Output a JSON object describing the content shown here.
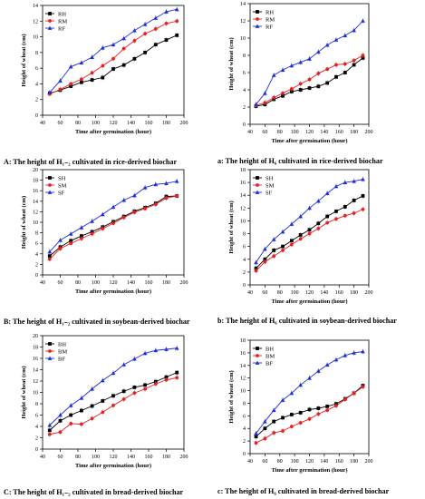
{
  "colors": {
    "H": "#000000",
    "M": "#e82020",
    "F": "#1f2fd8"
  },
  "panels": [
    {
      "id": "A",
      "caption": "A: The height of H₁₋₂ cultivated in rice-derived biochar",
      "chart_data": {
        "type": "line",
        "xlabel": "Time after germination (hour)",
        "ylabel": "Height of wheat (cm)",
        "xlim": [
          40,
          200
        ],
        "ylim": [
          0,
          14
        ],
        "xticks": [
          40,
          60,
          80,
          100,
          120,
          140,
          160,
          180,
          200
        ],
        "yticks": [
          0,
          2,
          4,
          6,
          8,
          10,
          12,
          14
        ],
        "legend_position": "top-left",
        "x": [
          48,
          60,
          72,
          84,
          96,
          108,
          120,
          132,
          144,
          156,
          168,
          180,
          192
        ],
        "series": [
          {
            "name": "RH",
            "marker": "square",
            "color": "#000000",
            "values": [
              2.8,
              3.2,
              3.7,
              4.2,
              4.5,
              4.8,
              5.9,
              6.4,
              7.2,
              8.0,
              9.0,
              9.6,
              10.2
            ]
          },
          {
            "name": "RM",
            "marker": "circle",
            "color": "#e82020",
            "values": [
              2.7,
              3.3,
              4.0,
              4.6,
              5.4,
              6.3,
              7.2,
              8.5,
              9.5,
              10.4,
              11.0,
              11.7,
              12.0
            ]
          },
          {
            "name": "RF",
            "marker": "triangle",
            "color": "#1f2fd8",
            "values": [
              2.9,
              4.4,
              6.2,
              6.7,
              7.4,
              8.6,
              9.0,
              9.8,
              10.8,
              11.6,
              12.4,
              13.2,
              13.5
            ]
          }
        ]
      }
    },
    {
      "id": "a",
      "caption": "a: The height of H₆ cultivated in rice-derived biochar",
      "chart_data": {
        "type": "line",
        "xlabel": "Time after germination (hour)",
        "ylabel": "Height of wheat (cm)",
        "xlim": [
          40,
          200
        ],
        "ylim": [
          0,
          14
        ],
        "xticks": [
          40,
          60,
          80,
          100,
          120,
          140,
          160,
          180,
          200
        ],
        "yticks": [
          0,
          2,
          4,
          6,
          8,
          10,
          12,
          14
        ],
        "legend_position": "top-left",
        "x": [
          48,
          60,
          72,
          84,
          96,
          108,
          120,
          132,
          144,
          156,
          168,
          180,
          192
        ],
        "series": [
          {
            "name": "RH",
            "marker": "square",
            "color": "#000000",
            "values": [
              2.1,
              2.3,
              2.9,
              3.3,
              3.8,
              4.0,
              4.2,
              4.4,
              4.8,
              5.5,
              6.0,
              6.9,
              7.7
            ]
          },
          {
            "name": "RM",
            "marker": "circle",
            "color": "#e82020",
            "values": [
              2.2,
              2.5,
              3.1,
              3.6,
              4.1,
              4.7,
              5.2,
              5.9,
              6.4,
              6.9,
              7.0,
              7.4,
              8.0
            ]
          },
          {
            "name": "RF",
            "marker": "triangle",
            "color": "#1f2fd8",
            "values": [
              2.3,
              3.6,
              5.7,
              6.3,
              6.8,
              7.2,
              7.6,
              8.4,
              9.2,
              9.8,
              10.3,
              10.9,
              12.0
            ]
          }
        ]
      }
    },
    {
      "id": "B",
      "caption": "B: The height of H₁₋₂ cultivated in soybean-derived biochar",
      "chart_data": {
        "type": "line",
        "xlabel": "Time after germination (hour)",
        "ylabel": "Height of wheat (cm)",
        "xlim": [
          40,
          200
        ],
        "ylim": [
          0,
          20
        ],
        "xticks": [
          40,
          60,
          80,
          100,
          120,
          140,
          160,
          180,
          200
        ],
        "yticks": [
          0,
          2,
          4,
          6,
          8,
          10,
          12,
          14,
          16,
          18,
          20
        ],
        "legend_position": "top-left",
        "x": [
          48,
          60,
          72,
          84,
          96,
          108,
          120,
          132,
          144,
          156,
          168,
          180,
          192
        ],
        "series": [
          {
            "name": "SH",
            "marker": "square",
            "color": "#000000",
            "values": [
              3.6,
              5.3,
              6.5,
              7.4,
              8.2,
              9.1,
              10.1,
              11.1,
              12.1,
              12.8,
              13.6,
              14.9,
              15.0
            ]
          },
          {
            "name": "SM",
            "marker": "circle",
            "color": "#e82020",
            "values": [
              3.0,
              5.0,
              6.0,
              6.9,
              7.8,
              8.8,
              9.8,
              10.9,
              11.9,
              12.6,
              13.4,
              14.6,
              15.0
            ]
          },
          {
            "name": "SF",
            "marker": "triangle",
            "color": "#1f2fd8",
            "values": [
              4.4,
              6.6,
              7.8,
              9.0,
              10.2,
              11.5,
              12.9,
              14.2,
              15.1,
              16.6,
              17.2,
              17.4,
              17.8
            ]
          }
        ]
      }
    },
    {
      "id": "b",
      "caption": "b: The height of H₆ cultivated in soybean-derived biochar",
      "chart_data": {
        "type": "line",
        "xlabel": "Time after germination (hour)",
        "ylabel": "Height of wheat (cm)",
        "xlim": [
          40,
          200
        ],
        "ylim": [
          0,
          18
        ],
        "xticks": [
          40,
          60,
          80,
          100,
          120,
          140,
          160,
          180,
          200
        ],
        "yticks": [
          0,
          2,
          4,
          6,
          8,
          10,
          12,
          14,
          16,
          18
        ],
        "legend_position": "top-left",
        "x": [
          48,
          60,
          72,
          84,
          96,
          108,
          120,
          132,
          144,
          156,
          168,
          180,
          192
        ],
        "series": [
          {
            "name": "SH",
            "marker": "square",
            "color": "#000000",
            "values": [
              2.6,
              4.0,
              5.4,
              6.0,
              6.9,
              7.8,
              8.6,
              9.6,
              10.7,
              11.5,
              12.2,
              13.2,
              13.9
            ]
          },
          {
            "name": "SM",
            "marker": "circle",
            "color": "#e82020",
            "values": [
              2.2,
              3.6,
              4.5,
              5.4,
              6.3,
              7.2,
              8.0,
              8.8,
              9.7,
              10.3,
              10.8,
              11.2,
              11.8
            ]
          },
          {
            "name": "SF",
            "marker": "triangle",
            "color": "#1f2fd8",
            "values": [
              3.5,
              5.6,
              7.1,
              8.3,
              9.5,
              10.7,
              12.0,
              13.1,
              14.3,
              15.4,
              16.0,
              16.2,
              16.5
            ]
          }
        ]
      }
    },
    {
      "id": "C",
      "caption": "C: The height of H₁₋₂ cultivated in bread-derived biochar",
      "chart_data": {
        "type": "line",
        "xlabel": "Time after germination (hour)",
        "ylabel": "Height of wheat (cm)",
        "xlim": [
          40,
          200
        ],
        "ylim": [
          0,
          20
        ],
        "xticks": [
          40,
          60,
          80,
          100,
          120,
          140,
          160,
          180,
          200
        ],
        "yticks": [
          0,
          2,
          4,
          6,
          8,
          10,
          12,
          14,
          16,
          18,
          20
        ],
        "legend_position": "top-left",
        "x": [
          48,
          60,
          72,
          84,
          96,
          108,
          120,
          132,
          144,
          156,
          168,
          180,
          192
        ],
        "series": [
          {
            "name": "BH",
            "marker": "square",
            "color": "#000000",
            "values": [
              3.3,
              5.0,
              6.0,
              6.8,
              7.6,
              8.5,
              9.4,
              10.2,
              10.9,
              11.3,
              11.9,
              12.7,
              13.5
            ]
          },
          {
            "name": "BM",
            "marker": "circle",
            "color": "#e82020",
            "values": [
              2.6,
              3.0,
              4.5,
              4.4,
              5.4,
              6.5,
              7.7,
              8.8,
              9.9,
              10.6,
              11.5,
              12.2,
              12.6
            ]
          },
          {
            "name": "BF",
            "marker": "triangle",
            "color": "#1f2fd8",
            "values": [
              4.2,
              6.0,
              7.7,
              9.0,
              10.6,
              12.1,
              13.4,
              14.9,
              15.9,
              16.9,
              17.4,
              17.6,
              17.8
            ]
          }
        ]
      }
    },
    {
      "id": "c",
      "caption": "c: The height of H₆ cultivated in bread-derived biochar",
      "chart_data": {
        "type": "line",
        "xlabel": "Time after germination (hour)",
        "ylabel": "Height of wheat (cm)",
        "xlim": [
          40,
          200
        ],
        "ylim": [
          0,
          18
        ],
        "xticks": [
          40,
          60,
          80,
          100,
          120,
          140,
          160,
          180,
          200
        ],
        "yticks": [
          0,
          2,
          4,
          6,
          8,
          10,
          12,
          14,
          16,
          18
        ],
        "legend_position": "top-left",
        "x": [
          48,
          60,
          72,
          84,
          96,
          108,
          120,
          132,
          144,
          156,
          168,
          180,
          192
        ],
        "series": [
          {
            "name": "BH",
            "marker": "square",
            "color": "#000000",
            "values": [
              2.7,
              4.0,
              5.1,
              5.7,
              6.2,
              6.5,
              7.0,
              7.2,
              7.5,
              7.9,
              8.7,
              9.6,
              10.8
            ]
          },
          {
            "name": "BM",
            "marker": "circle",
            "color": "#e82020",
            "values": [
              1.7,
              2.4,
              3.3,
              3.6,
              4.3,
              4.9,
              5.5,
              6.3,
              6.9,
              7.6,
              8.6,
              9.6,
              10.6
            ]
          },
          {
            "name": "BF",
            "marker": "triangle",
            "color": "#1f2fd8",
            "values": [
              3.2,
              5.1,
              6.9,
              8.5,
              9.6,
              10.9,
              12.0,
              13.1,
              14.1,
              14.9,
              15.6,
              16.0,
              16.2
            ]
          }
        ]
      }
    }
  ]
}
